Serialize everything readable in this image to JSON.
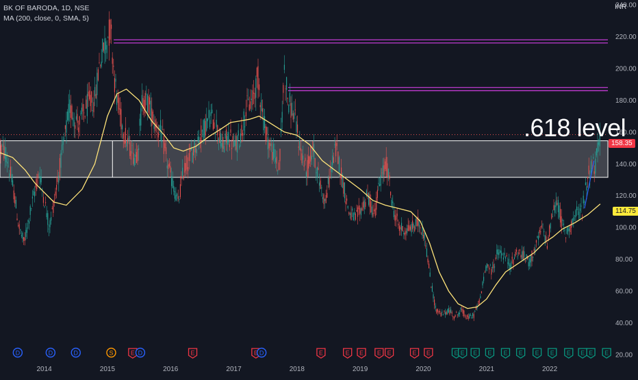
{
  "header": {
    "symbol_line": "BK OF BARODA, 1D, NSE",
    "indicator_line": "MA (200, close, 0, SMA, 5)"
  },
  "axis": {
    "currency": "INR"
  },
  "annotation": {
    "big_text": ".618 level"
  },
  "price_tags": {
    "last_price": "158.35",
    "ma_value": "114.75"
  },
  "colors": {
    "background": "#131722",
    "up_candle": "#26a69a",
    "down_candle": "#ef5350",
    "ma_line": "#ffe47a",
    "resistance_line": "#c33bd4",
    "zone_fill": "#4a4c55",
    "dividend_marker": "#2962ff",
    "earnings_down_marker": "#f23645",
    "earnings_up_marker": "#089981",
    "split_marker": "#ff9800"
  },
  "chart_data": {
    "type": "candlestick",
    "title": "BK OF BARODA, 1D, NSE",
    "ylabel": "INR",
    "y_ticks": [
      "240.00",
      "220.00",
      "200.00",
      "180.00",
      "160.00",
      "140.00",
      "120.00",
      "100.00",
      "80.00",
      "60.00",
      "40.00",
      "20.00"
    ],
    "ylim": [
      20,
      240
    ],
    "x_ticks": [
      "2014",
      "2015",
      "2016",
      "2017",
      "2018",
      "2019",
      "2020",
      "2021",
      "2022"
    ],
    "xlim": [
      2013.3,
      2022.92
    ],
    "price_path": [
      [
        2013.3,
        150
      ],
      [
        2013.4,
        146
      ],
      [
        2013.52,
        122
      ],
      [
        2013.6,
        100
      ],
      [
        2013.68,
        90
      ],
      [
        2013.78,
        110
      ],
      [
        2013.92,
        135
      ],
      [
        2014.0,
        118
      ],
      [
        2014.08,
        100
      ],
      [
        2014.17,
        120
      ],
      [
        2014.3,
        150
      ],
      [
        2014.4,
        175
      ],
      [
        2014.55,
        165
      ],
      [
        2014.7,
        178
      ],
      [
        2014.8,
        180
      ],
      [
        2014.88,
        205
      ],
      [
        2014.98,
        218
      ],
      [
        2015.05,
        225
      ],
      [
        2015.12,
        190
      ],
      [
        2015.2,
        170
      ],
      [
        2015.3,
        155
      ],
      [
        2015.42,
        145
      ],
      [
        2015.48,
        148
      ],
      [
        2015.55,
        180
      ],
      [
        2015.65,
        178
      ],
      [
        2015.75,
        165
      ],
      [
        2015.85,
        160
      ],
      [
        2015.95,
        140
      ],
      [
        2016.05,
        125
      ],
      [
        2016.12,
        115
      ],
      [
        2016.2,
        135
      ],
      [
        2016.35,
        148
      ],
      [
        2016.5,
        160
      ],
      [
        2016.62,
        170
      ],
      [
        2016.72,
        165
      ],
      [
        2016.82,
        150
      ],
      [
        2016.92,
        158
      ],
      [
        2017.02,
        150
      ],
      [
        2017.12,
        160
      ],
      [
        2017.2,
        175
      ],
      [
        2017.3,
        180
      ],
      [
        2017.38,
        195
      ],
      [
        2017.48,
        165
      ],
      [
        2017.58,
        150
      ],
      [
        2017.65,
        145
      ],
      [
        2017.72,
        135
      ],
      [
        2017.8,
        200
      ],
      [
        2017.86,
        180
      ],
      [
        2017.96,
        170
      ],
      [
        2018.05,
        150
      ],
      [
        2018.15,
        135
      ],
      [
        2018.25,
        150
      ],
      [
        2018.35,
        130
      ],
      [
        2018.45,
        115
      ],
      [
        2018.55,
        140
      ],
      [
        2018.62,
        150
      ],
      [
        2018.72,
        130
      ],
      [
        2018.82,
        110
      ],
      [
        2018.92,
        105
      ],
      [
        2019.02,
        112
      ],
      [
        2019.12,
        120
      ],
      [
        2019.22,
        108
      ],
      [
        2019.32,
        130
      ],
      [
        2019.42,
        140
      ],
      [
        2019.52,
        112
      ],
      [
        2019.62,
        100
      ],
      [
        2019.72,
        98
      ],
      [
        2019.82,
        100
      ],
      [
        2019.92,
        103
      ],
      [
        2020.02,
        95
      ],
      [
        2020.12,
        65
      ],
      [
        2020.2,
        48
      ],
      [
        2020.3,
        45
      ],
      [
        2020.4,
        48
      ],
      [
        2020.5,
        44
      ],
      [
        2020.6,
        48
      ],
      [
        2020.7,
        43
      ],
      [
        2020.8,
        45
      ],
      [
        2020.9,
        55
      ],
      [
        2021.0,
        78
      ],
      [
        2021.08,
        72
      ],
      [
        2021.18,
        85
      ],
      [
        2021.28,
        82
      ],
      [
        2021.38,
        76
      ],
      [
        2021.48,
        85
      ],
      [
        2021.58,
        82
      ],
      [
        2021.68,
        78
      ],
      [
        2021.78,
        88
      ],
      [
        2021.88,
        100
      ],
      [
        2021.96,
        90
      ],
      [
        2022.05,
        110
      ],
      [
        2022.12,
        116
      ],
      [
        2022.18,
        105
      ],
      [
        2022.25,
        95
      ],
      [
        2022.33,
        102
      ],
      [
        2022.42,
        108
      ],
      [
        2022.52,
        112
      ],
      [
        2022.6,
        132
      ],
      [
        2022.66,
        140
      ],
      [
        2022.72,
        138
      ],
      [
        2022.8,
        158.35
      ]
    ],
    "ma200": [
      [
        2013.3,
        147
      ],
      [
        2013.5,
        144
      ],
      [
        2013.7,
        136
      ],
      [
        2013.85,
        128
      ],
      [
        2014.0,
        122
      ],
      [
        2014.15,
        116
      ],
      [
        2014.35,
        114
      ],
      [
        2014.6,
        124
      ],
      [
        2014.8,
        140
      ],
      [
        2015.0,
        170
      ],
      [
        2015.15,
        184
      ],
      [
        2015.3,
        187
      ],
      [
        2015.5,
        180
      ],
      [
        2015.7,
        167
      ],
      [
        2015.9,
        158
      ],
      [
        2016.05,
        150
      ],
      [
        2016.2,
        148
      ],
      [
        2016.4,
        151
      ],
      [
        2016.6,
        157
      ],
      [
        2016.8,
        162
      ],
      [
        2016.95,
        166
      ],
      [
        2017.1,
        167
      ],
      [
        2017.25,
        168
      ],
      [
        2017.4,
        170
      ],
      [
        2017.6,
        165
      ],
      [
        2017.8,
        160
      ],
      [
        2018.0,
        158
      ],
      [
        2018.2,
        152
      ],
      [
        2018.4,
        142
      ],
      [
        2018.6,
        136
      ],
      [
        2018.8,
        130
      ],
      [
        2019.0,
        124
      ],
      [
        2019.2,
        117
      ],
      [
        2019.4,
        114
      ],
      [
        2019.6,
        112
      ],
      [
        2019.8,
        110
      ],
      [
        2019.95,
        104
      ],
      [
        2020.1,
        90
      ],
      [
        2020.25,
        72
      ],
      [
        2020.4,
        60
      ],
      [
        2020.55,
        52
      ],
      [
        2020.7,
        49
      ],
      [
        2020.85,
        50
      ],
      [
        2021.0,
        55
      ],
      [
        2021.15,
        64
      ],
      [
        2021.3,
        72
      ],
      [
        2021.45,
        76
      ],
      [
        2021.6,
        80
      ],
      [
        2021.75,
        84
      ],
      [
        2021.9,
        90
      ],
      [
        2022.05,
        94
      ],
      [
        2022.2,
        99
      ],
      [
        2022.4,
        103
      ],
      [
        2022.6,
        108
      ],
      [
        2022.8,
        114.75
      ]
    ],
    "resistance_levels": [
      {
        "x_start": 2015.1,
        "x_end": 2022.92,
        "y": 216
      },
      {
        "x_start": 2015.1,
        "x_end": 2022.92,
        "y": 218
      },
      {
        "x_start": 2017.86,
        "x_end": 2022.92,
        "y": 186
      },
      {
        "x_start": 2017.86,
        "x_end": 2022.92,
        "y": 188
      }
    ],
    "zone": {
      "x_start": 2013.3,
      "x_end": 2022.92,
      "y_low": 131.5,
      "y_high": 154.5,
      "divider_x": 2015.08
    },
    "last_price_line": 158.35,
    "trend_line": {
      "x_start": 2022.55,
      "y_start": 112,
      "x_end": 2022.7,
      "y_end": 142
    },
    "event_markers": [
      {
        "x": 2013.58,
        "label": "D"
      },
      {
        "x": 2014.1,
        "label": "D"
      },
      {
        "x": 2014.5,
        "label": "D"
      },
      {
        "x": 2015.06,
        "label": "S"
      },
      {
        "x": 2015.4,
        "label": "E"
      },
      {
        "x": 2015.52,
        "label": "D"
      },
      {
        "x": 2016.35,
        "label": "E"
      },
      {
        "x": 2017.35,
        "label": "E"
      },
      {
        "x": 2017.44,
        "label": "D"
      },
      {
        "x": 2018.38,
        "label": "E"
      },
      {
        "x": 2018.8,
        "label": "E"
      },
      {
        "x": 2019.02,
        "label": "E"
      },
      {
        "x": 2019.3,
        "label": "E"
      },
      {
        "x": 2019.46,
        "label": "E"
      },
      {
        "x": 2019.86,
        "label": "E"
      },
      {
        "x": 2020.08,
        "label": "E"
      },
      {
        "x": 2020.52,
        "label": "E"
      },
      {
        "x": 2020.62,
        "label": "E"
      },
      {
        "x": 2020.82,
        "label": "E"
      },
      {
        "x": 2021.05,
        "label": "E"
      },
      {
        "x": 2021.3,
        "label": "E"
      },
      {
        "x": 2021.54,
        "label": "E"
      },
      {
        "x": 2021.8,
        "label": "E"
      },
      {
        "x": 2022.04,
        "label": "E"
      },
      {
        "x": 2022.3,
        "label": "E"
      },
      {
        "x": 2022.52,
        "label": "E"
      },
      {
        "x": 2022.65,
        "label": "E"
      },
      {
        "x": 2022.9,
        "label": "E"
      }
    ]
  }
}
